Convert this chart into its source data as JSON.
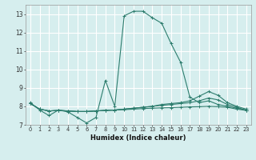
{
  "xlabel": "Humidex (Indice chaleur)",
  "bg_color": "#d6eeee",
  "grid_color": "#ffffff",
  "line_color": "#2d7d6e",
  "xlim": [
    -0.5,
    23.5
  ],
  "ylim": [
    7.0,
    13.5
  ],
  "yticks": [
    7,
    8,
    9,
    10,
    11,
    12,
    13
  ],
  "xticks": [
    0,
    1,
    2,
    3,
    4,
    5,
    6,
    7,
    8,
    9,
    10,
    11,
    12,
    13,
    14,
    15,
    16,
    17,
    18,
    19,
    20,
    21,
    22,
    23
  ],
  "series1_x": [
    0,
    1,
    2,
    3,
    4,
    5,
    6,
    7,
    8,
    9,
    10,
    11,
    12,
    13,
    14,
    15,
    16,
    17,
    18,
    19,
    20,
    21,
    22,
    23
  ],
  "series1_y": [
    8.2,
    7.8,
    7.5,
    7.8,
    7.7,
    7.4,
    7.1,
    7.4,
    9.4,
    8.0,
    12.9,
    13.15,
    13.15,
    12.8,
    12.5,
    11.4,
    10.4,
    8.5,
    8.2,
    8.3,
    8.1,
    8.0,
    7.9,
    7.8
  ],
  "series2_x": [
    0,
    1,
    2,
    3,
    4,
    5,
    6,
    7,
    8,
    9,
    10,
    11,
    12,
    13,
    14,
    15,
    16,
    17,
    18,
    19,
    20,
    21,
    22,
    23
  ],
  "series2_y": [
    8.15,
    7.85,
    7.75,
    7.78,
    7.75,
    7.72,
    7.72,
    7.75,
    7.78,
    7.8,
    7.82,
    7.85,
    7.88,
    7.9,
    7.92,
    7.93,
    7.95,
    7.97,
    7.98,
    8.0,
    7.98,
    7.95,
    7.85,
    7.78
  ],
  "series3_x": [
    0,
    1,
    2,
    3,
    4,
    5,
    6,
    7,
    8,
    9,
    10,
    11,
    12,
    13,
    14,
    15,
    16,
    17,
    18,
    19,
    20,
    21,
    22,
    23
  ],
  "series3_y": [
    8.15,
    7.85,
    7.75,
    7.78,
    7.75,
    7.72,
    7.72,
    7.75,
    7.78,
    7.8,
    7.85,
    7.9,
    7.95,
    8.0,
    8.05,
    8.1,
    8.15,
    8.2,
    8.3,
    8.45,
    8.35,
    8.1,
    7.95,
    7.78
  ],
  "series4_x": [
    0,
    1,
    2,
    3,
    4,
    5,
    6,
    7,
    8,
    9,
    10,
    11,
    12,
    13,
    14,
    15,
    16,
    17,
    18,
    19,
    20,
    21,
    22,
    23
  ],
  "series4_y": [
    8.15,
    7.85,
    7.75,
    7.78,
    7.75,
    7.72,
    7.72,
    7.75,
    7.78,
    7.8,
    7.85,
    7.9,
    7.95,
    8.0,
    8.1,
    8.15,
    8.2,
    8.3,
    8.55,
    8.8,
    8.6,
    8.2,
    8.0,
    7.85
  ]
}
